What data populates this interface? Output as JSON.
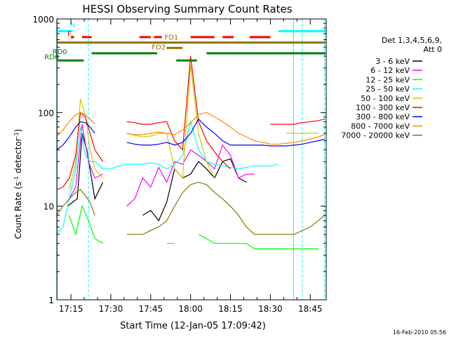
{
  "chart_data": {
    "type": "line",
    "title": "HESSI Observing Summary Count Rates",
    "xlabel": "Start Time (12-Jan-05 17:09:42)",
    "ylabel_main": "Count Rate (s",
    "ylabel_sup": "-1",
    "ylabel_tail": " detector",
    "ylabel_end": ")",
    "timestamp": "16-Feb-2010 05:56",
    "y_scale": "log",
    "ylim": [
      1,
      1000
    ],
    "xlim_minutes": [
      17.1617,
      18.85
    ],
    "x_ticks": [
      {
        "label": "17:15",
        "t": 17.25
      },
      {
        "label": "17:30",
        "t": 17.5
      },
      {
        "label": "17:45",
        "t": 17.75
      },
      {
        "label": "18:00",
        "t": 18.0
      },
      {
        "label": "18:15",
        "t": 18.25
      },
      {
        "label": "18:30",
        "t": 18.5
      },
      {
        "label": "18:45",
        "t": 18.75
      }
    ],
    "y_ticks": [
      {
        "label": "1",
        "v": 1
      },
      {
        "label": "10",
        "v": 10
      },
      {
        "label": "100",
        "v": 100
      },
      {
        "label": "1000",
        "v": 1000
      }
    ],
    "legend_header": [
      "Det 1,3,4,5,6,9,",
      "Att 0"
    ],
    "series": [
      {
        "name": "3 - 6 keV",
        "color": "#000000",
        "x": [
          17.16,
          17.2,
          17.23,
          17.26,
          17.29,
          17.32,
          17.35,
          17.4,
          17.45,
          17.5,
          17.55,
          17.6,
          17.65,
          17.7,
          17.75,
          17.8,
          17.85,
          17.9,
          17.95,
          18.0,
          18.05,
          18.1,
          18.15,
          18.2,
          18.25,
          18.3,
          18.35,
          18.4,
          18.45,
          18.5,
          18.55,
          18.6,
          18.65,
          18.7,
          18.75,
          18.8,
          18.84
        ],
        "y": [
          null,
          null,
          10,
          11,
          12,
          60,
          40,
          12,
          18,
          null,
          null,
          null,
          null,
          8,
          9,
          7,
          11,
          25,
          20,
          22,
          30,
          25,
          20,
          30,
          32,
          20,
          18,
          null,
          null,
          null,
          null,
          null,
          null,
          null,
          null,
          null,
          null
        ]
      },
      {
        "name": "6 - 12 keV",
        "color": "#ff00ff",
        "x": [
          17.16,
          17.2,
          17.24,
          17.28,
          17.32,
          17.36,
          17.4,
          17.45,
          17.5,
          17.55,
          17.6,
          17.65,
          17.7,
          17.75,
          17.8,
          17.85,
          17.9,
          17.95,
          18.0,
          18.05,
          18.1,
          18.15,
          18.2,
          18.25,
          18.3,
          18.35,
          18.4,
          18.45,
          18.5,
          18.55,
          18.6,
          18.65,
          18.7,
          18.75,
          18.8,
          18.84
        ],
        "y": [
          null,
          null,
          12,
          16,
          75,
          30,
          20,
          22,
          null,
          null,
          10,
          12,
          20,
          16,
          26,
          18,
          30,
          28,
          40,
          35,
          30,
          25,
          45,
          35,
          20,
          22,
          22,
          null,
          null,
          null,
          null,
          null,
          null,
          null,
          null,
          null
        ]
      },
      {
        "name": "12 - 25 keV",
        "color": "#00ff00",
        "x": [
          17.16,
          17.2,
          17.24,
          17.28,
          17.32,
          17.36,
          17.4,
          17.45,
          17.5,
          17.55,
          17.6,
          17.65,
          17.7,
          17.75,
          17.8,
          17.85,
          17.9,
          17.95,
          18.0,
          18.05,
          18.1,
          18.15,
          18.2,
          18.25,
          18.3,
          18.35,
          18.4,
          18.45,
          18.5,
          18.55,
          18.6,
          18.65,
          18.7,
          18.75,
          18.8,
          18.84
        ],
        "y": [
          null,
          null,
          8,
          5,
          10,
          7,
          4.5,
          4,
          null,
          null,
          null,
          null,
          null,
          null,
          null,
          4,
          4,
          null,
          null,
          5,
          4.5,
          4,
          4,
          4,
          4,
          4,
          3.5,
          3.5,
          3.5,
          3.5,
          3.5,
          3.5,
          3.5,
          3.5,
          3.5,
          null
        ]
      },
      {
        "name": "25 - 50 keV",
        "color": "#00ffff",
        "x": [
          17.16,
          17.2,
          17.24,
          17.28,
          17.31,
          17.34,
          17.37,
          17.4,
          17.45,
          17.5,
          17.55,
          17.6,
          17.65,
          17.7,
          17.75,
          17.8,
          17.85,
          17.9,
          17.95,
          18.0,
          18.05,
          18.1,
          18.15,
          18.2,
          18.25,
          18.3,
          18.35,
          18.4,
          18.45,
          18.5,
          18.55,
          18.6,
          18.65,
          18.7,
          18.75,
          18.8,
          18.84
        ],
        "y": [
          5,
          6,
          12,
          25,
          70,
          35,
          30,
          30,
          25,
          25,
          27,
          28,
          28,
          28,
          29,
          28,
          25,
          28,
          35,
          80,
          40,
          30,
          28,
          27,
          26,
          25,
          26,
          27,
          27,
          27,
          28,
          null,
          null,
          null,
          null,
          null,
          null
        ]
      },
      {
        "name": "50 - 100 keV",
        "color": "#cccc00",
        "x": [
          17.16,
          17.2,
          17.24,
          17.28,
          17.31,
          17.34,
          17.37,
          17.4,
          17.45,
          17.5,
          17.55,
          17.6,
          17.65,
          17.7,
          17.75,
          17.8,
          17.85,
          17.9,
          17.95,
          18.0,
          18.05,
          18.1,
          18.15,
          18.2,
          18.25,
          18.3,
          18.35,
          18.4,
          18.45,
          18.5,
          18.55,
          18.6,
          18.65,
          18.7,
          18.75,
          18.8,
          18.84
        ],
        "y": [
          null,
          null,
          15,
          30,
          140,
          95,
          40,
          25,
          20,
          null,
          null,
          60,
          57,
          55,
          56,
          60,
          60,
          25,
          20,
          320,
          60,
          30,
          20,
          null,
          null,
          null,
          null,
          null,
          null,
          null,
          null,
          60,
          60,
          60,
          60,
          60,
          null
        ]
      },
      {
        "name": "100 - 300 keV",
        "color": "#ff0000",
        "x": [
          17.16,
          17.2,
          17.24,
          17.28,
          17.31,
          17.34,
          17.37,
          17.4,
          17.45,
          17.5,
          17.55,
          17.6,
          17.65,
          17.7,
          17.75,
          17.8,
          17.85,
          17.9,
          17.95,
          18.0,
          18.05,
          18.1,
          18.15,
          18.2,
          18.25,
          18.3,
          18.35,
          18.4,
          18.45,
          18.5,
          18.55,
          18.6,
          18.65,
          18.7,
          18.75,
          18.8,
          18.84
        ],
        "y": [
          15,
          16,
          20,
          35,
          100,
          90,
          60,
          40,
          30,
          null,
          null,
          80,
          78,
          75,
          75,
          78,
          80,
          50,
          40,
          400,
          80,
          50,
          38,
          30,
          25,
          null,
          null,
          null,
          null,
          75,
          75,
          75,
          75,
          78,
          80,
          82,
          85
        ]
      },
      {
        "name": "300 - 800 keV",
        "color": "#0000ff",
        "x": [
          17.16,
          17.2,
          17.24,
          17.28,
          17.31,
          17.34,
          17.37,
          17.4,
          17.45,
          17.5,
          17.55,
          17.6,
          17.65,
          17.7,
          17.75,
          17.8,
          17.85,
          17.9,
          17.95,
          18.0,
          18.05,
          18.1,
          18.15,
          18.2,
          18.25,
          18.3,
          18.35,
          18.4,
          18.45,
          18.5,
          18.55,
          18.6,
          18.65,
          18.7,
          18.75,
          18.8,
          18.84
        ],
        "y": [
          40,
          45,
          55,
          70,
          80,
          78,
          70,
          60,
          null,
          null,
          null,
          48,
          46,
          45,
          45,
          46,
          48,
          45,
          48,
          60,
          85,
          70,
          60,
          50,
          45,
          45,
          45,
          45,
          45,
          44,
          44,
          44,
          45,
          46,
          48,
          50,
          52
        ]
      },
      {
        "name": "800 - 7000 keV",
        "color": "#ff8800",
        "x": [
          17.16,
          17.2,
          17.24,
          17.28,
          17.31,
          17.34,
          17.37,
          17.4,
          17.45,
          17.5,
          17.55,
          17.6,
          17.65,
          17.7,
          17.75,
          17.8,
          17.85,
          17.9,
          17.95,
          18.0,
          18.05,
          18.1,
          18.15,
          18.2,
          18.25,
          18.3,
          18.35,
          18.4,
          18.45,
          18.5,
          18.55,
          18.6,
          18.65,
          18.7,
          18.75,
          18.8,
          18.84
        ],
        "y": [
          55,
          65,
          80,
          95,
          100,
          95,
          85,
          75,
          null,
          null,
          null,
          60,
          58,
          58,
          60,
          62,
          60,
          58,
          65,
          78,
          95,
          100,
          90,
          80,
          70,
          60,
          55,
          50,
          48,
          46,
          46,
          47,
          48,
          50,
          52,
          55,
          58
        ]
      },
      {
        "name": "7000 - 20000 keV",
        "color": "#8b7500",
        "x": [
          17.16,
          17.2,
          17.24,
          17.28,
          17.31,
          17.34,
          17.37,
          17.4,
          17.45,
          17.5,
          17.55,
          17.6,
          17.65,
          17.7,
          17.75,
          17.8,
          17.85,
          17.9,
          17.95,
          18.0,
          18.05,
          18.1,
          18.15,
          18.2,
          18.25,
          18.3,
          18.35,
          18.4,
          18.45,
          18.5,
          18.55,
          18.6,
          18.65,
          18.7,
          18.75,
          18.8,
          18.84
        ],
        "y": [
          8,
          10,
          12,
          14,
          15,
          13,
          11,
          8,
          null,
          null,
          null,
          5,
          5,
          5,
          5.5,
          6,
          7,
          10,
          14,
          17,
          18,
          17,
          14,
          12,
          10,
          8,
          6,
          5,
          5,
          5,
          5,
          5,
          5,
          5.5,
          6,
          7,
          8
        ]
      }
    ],
    "mode_annotations": [
      {
        "label": "N",
        "color": "#00ffff",
        "x_start": 17.16,
        "x_end": 17.26,
        "y_value": 740,
        "label_t": 17.26,
        "label_y": 810
      },
      {
        "label": "",
        "color": "#00ffff",
        "x_start": 18.55,
        "x_end": 18.85,
        "y_value": 740,
        "label_t": null,
        "label_y": null
      },
      {
        "label": "F",
        "color": "#ff0000",
        "x_start": 17.25,
        "x_end": 17.27,
        "y_value": 640,
        "label_t": 17.24,
        "label_y": 650
      },
      {
        "label": "",
        "color": "#ff0000",
        "x_start": 17.32,
        "x_end": 17.38,
        "y_value": 640,
        "label_t": null,
        "label_y": null
      },
      {
        "label": "",
        "color": "#ff0000",
        "x_start": 17.68,
        "x_end": 17.75,
        "y_value": 640,
        "label_t": null,
        "label_y": null
      },
      {
        "label": "",
        "color": "#ff0000",
        "x_start": 17.77,
        "x_end": 17.82,
        "y_value": 640,
        "label_t": null,
        "label_y": null
      },
      {
        "label": "",
        "color": "#ff0000",
        "x_start": 18.0,
        "x_end": 18.15,
        "y_value": 640,
        "label_t": null,
        "label_y": null
      },
      {
        "label": "",
        "color": "#ff0000",
        "x_start": 18.2,
        "x_end": 18.27,
        "y_value": 640,
        "label_t": null,
        "label_y": null
      },
      {
        "label": "",
        "color": "#ff0000",
        "x_start": 18.37,
        "x_end": 18.5,
        "y_value": 640,
        "label_t": null,
        "label_y": null
      },
      {
        "label": "FD1",
        "color": "#8b7500",
        "x_start": 17.16,
        "x_end": 18.85,
        "y_value": 560,
        "label_t": 17.88,
        "label_y": 600
      },
      {
        "label": "FD2",
        "color": "#8b7500",
        "x_start": 17.85,
        "x_end": 17.95,
        "y_value": 490,
        "label_t": 17.8,
        "label_y": 470
      },
      {
        "label": "RD0",
        "color": "#008000",
        "x_start": 17.38,
        "x_end": 17.79,
        "y_value": 430,
        "label_t": 17.18,
        "label_y": 420
      },
      {
        "label": "",
        "color": "#008000",
        "x_start": 18.1,
        "x_end": 18.85,
        "y_value": 430,
        "label_t": null,
        "label_y": null
      },
      {
        "label": "RD6",
        "color": "#008000",
        "x_start": 17.16,
        "x_end": 17.33,
        "y_value": 360,
        "label_t": 17.13,
        "label_y": 370
      },
      {
        "label": "",
        "color": "#008000",
        "x_start": 17.91,
        "x_end": 18.04,
        "y_value": 360,
        "label_t": null,
        "label_y": null
      }
    ],
    "vertical_markers": [
      {
        "t": 17.165,
        "color": "#00ffff",
        "dashed": false
      },
      {
        "t": 17.36,
        "color": "#00ffff",
        "dashed": true
      },
      {
        "t": 18.645,
        "color": "#00ffff",
        "dashed": false
      },
      {
        "t": 18.7,
        "color": "#00ffff",
        "dashed": true
      },
      {
        "t": 18.84,
        "color": "#00ffff",
        "dashed": true
      }
    ],
    "legend_placement": "right",
    "grid": false
  }
}
